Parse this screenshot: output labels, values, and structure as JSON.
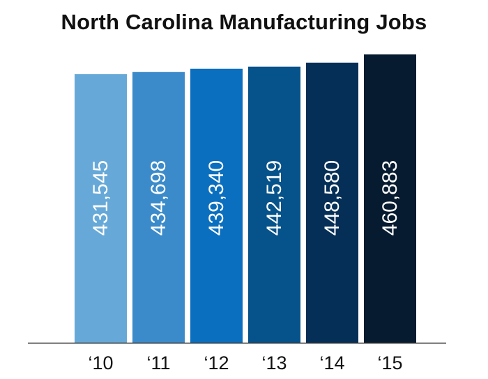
{
  "chart_data": {
    "type": "bar",
    "title": "North Carolina Manufacturing Jobs",
    "categories": [
      "‘10",
      "‘11",
      "‘12",
      "‘13",
      "‘14",
      "‘15"
    ],
    "values": [
      431545,
      434698,
      439340,
      442519,
      448580,
      460883
    ],
    "value_labels": [
      "431,545",
      "434,698",
      "439,340",
      "442,519",
      "448,580",
      "460,883"
    ],
    "bar_colors": [
      "#66a9d8",
      "#3b8bca",
      "#0a6fbf",
      "#06528a",
      "#052f57",
      "#071b30"
    ],
    "axis_line_color": "#333333",
    "grid": false,
    "legend": "none",
    "xlabel": "",
    "ylabel": ""
  }
}
